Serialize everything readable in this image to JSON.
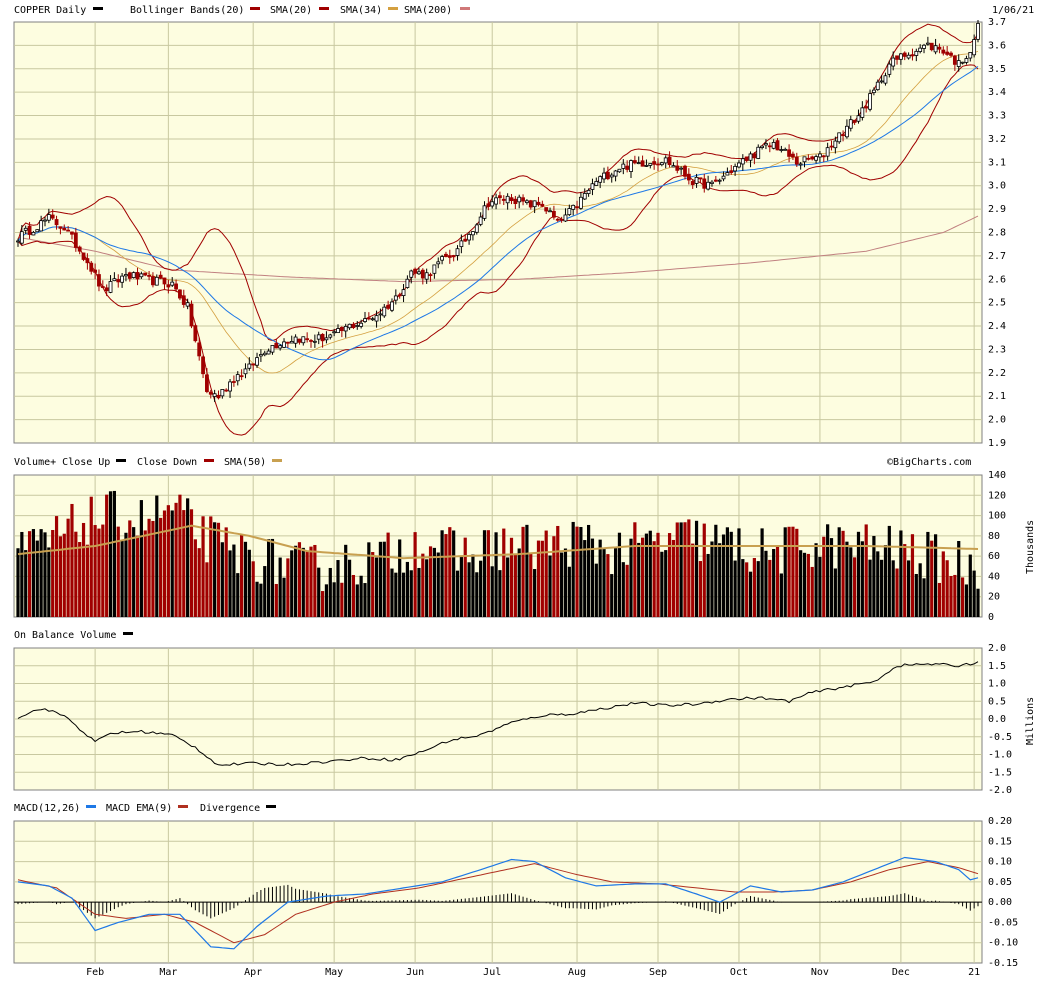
{
  "colors": {
    "background": "#fdfde0",
    "grid": "#c8c8a0",
    "up": "#000000",
    "down": "#a00000",
    "boll": "#a00000",
    "sma20": "#a00000",
    "sma34": "#d4a040",
    "sma200_line": "#1e78e6",
    "sma200_legend": "#d07878",
    "long_ma": "#c08080",
    "vol_sma": "#c8a050",
    "macd": "#1e78e6",
    "macd_ema": "#b03020",
    "divergence": "#000000"
  },
  "header": {
    "symbol_label": "COPPER Daily",
    "date": "1/06/21",
    "legend": [
      {
        "text": "Bollinger Bands(20)",
        "swatch": "#a00000"
      },
      {
        "text": "SMA(20)",
        "swatch": "#a00000"
      },
      {
        "text": "SMA(34)",
        "swatch": "#d4a040"
      },
      {
        "text": "SMA(200)",
        "swatch": "#d07878"
      }
    ]
  },
  "watermark": "©BigCharts.com",
  "months": [
    "Feb",
    "Mar",
    "Apr",
    "May",
    "Jun",
    "Jul",
    "Aug",
    "Sep",
    "Oct",
    "Nov",
    "Dec",
    "21"
  ],
  "chart_data": [
    {
      "type": "candlestick",
      "title": "COPPER Daily",
      "ylim": [
        1.9,
        3.7
      ],
      "ticks": [
        "3.7",
        "3.6",
        "3.5",
        "3.4",
        "3.3",
        "3.2",
        "3.1",
        "3.0",
        "2.9",
        "2.8",
        "2.7",
        "2.6",
        "2.5",
        "2.4",
        "2.3",
        "2.2",
        "2.1",
        "2.0",
        "1.9"
      ],
      "close_anchors": [
        [
          0,
          2.78
        ],
        [
          8,
          2.86
        ],
        [
          12,
          2.82
        ],
        [
          18,
          2.68
        ],
        [
          22,
          2.55
        ],
        [
          28,
          2.62
        ],
        [
          33,
          2.6
        ],
        [
          40,
          2.58
        ],
        [
          44,
          2.48
        ],
        [
          49,
          2.12
        ],
        [
          52,
          2.1
        ],
        [
          56,
          2.18
        ],
        [
          60,
          2.22
        ],
        [
          64,
          2.3
        ],
        [
          68,
          2.33
        ],
        [
          72,
          2.35
        ],
        [
          76,
          2.34
        ],
        [
          82,
          2.36
        ],
        [
          86,
          2.4
        ],
        [
          90,
          2.42
        ],
        [
          94,
          2.46
        ],
        [
          98,
          2.52
        ],
        [
          102,
          2.63
        ],
        [
          106,
          2.62
        ],
        [
          110,
          2.68
        ],
        [
          114,
          2.72
        ],
        [
          118,
          2.82
        ],
        [
          122,
          2.93
        ],
        [
          128,
          2.95
        ],
        [
          132,
          2.92
        ],
        [
          136,
          2.92
        ],
        [
          140,
          2.84
        ],
        [
          144,
          2.9
        ],
        [
          150,
          3.02
        ],
        [
          156,
          3.08
        ],
        [
          162,
          3.1
        ],
        [
          168,
          3.11
        ],
        [
          172,
          3.06
        ],
        [
          175,
          3.02
        ],
        [
          180,
          3.0
        ],
        [
          186,
          3.08
        ],
        [
          192,
          3.15
        ],
        [
          196,
          3.18
        ],
        [
          202,
          3.1
        ],
        [
          208,
          3.12
        ],
        [
          212,
          3.2
        ],
        [
          218,
          3.3
        ],
        [
          222,
          3.4
        ],
        [
          226,
          3.52
        ],
        [
          230,
          3.56
        ],
        [
          236,
          3.6
        ],
        [
          240,
          3.58
        ],
        [
          244,
          3.52
        ],
        [
          247,
          3.58
        ],
        [
          249,
          3.68
        ]
      ],
      "sma200_points": [
        [
          0,
          2.78
        ],
        [
          20,
          2.72
        ],
        [
          40,
          2.64
        ],
        [
          70,
          2.61
        ],
        [
          100,
          2.59
        ],
        [
          130,
          2.6
        ],
        [
          160,
          2.63
        ],
        [
          190,
          2.67
        ],
        [
          220,
          2.72
        ],
        [
          240,
          2.8
        ],
        [
          249,
          2.87
        ]
      ]
    },
    {
      "type": "bar",
      "title": "Volume+",
      "legend": [
        {
          "text": "Volume+ Close Up",
          "swatch": "#000000"
        },
        {
          "text": "Close Down",
          "swatch": "#a00000"
        },
        {
          "text": "SMA(50)",
          "swatch": "#c8a050"
        }
      ],
      "ylabel": "Thousands",
      "ylim": [
        0,
        140
      ],
      "ticks": [
        "140",
        "120",
        "100",
        "80",
        "60",
        "40",
        "20",
        "0"
      ],
      "volume_anchors": [
        [
          0,
          60
        ],
        [
          10,
          78
        ],
        [
          18,
          95
        ],
        [
          25,
          100
        ],
        [
          32,
          95
        ],
        [
          40,
          105
        ],
        [
          48,
          80
        ],
        [
          55,
          65
        ],
        [
          65,
          55
        ],
        [
          75,
          48
        ],
        [
          85,
          52
        ],
        [
          95,
          58
        ],
        [
          105,
          75
        ],
        [
          115,
          60
        ],
        [
          125,
          70
        ],
        [
          135,
          68
        ],
        [
          145,
          75
        ],
        [
          155,
          65
        ],
        [
          165,
          72
        ],
        [
          175,
          78
        ],
        [
          185,
          70
        ],
        [
          195,
          62
        ],
        [
          205,
          72
        ],
        [
          215,
          70
        ],
        [
          225,
          68
        ],
        [
          235,
          60
        ],
        [
          249,
          50
        ]
      ],
      "sma50_points": [
        [
          0,
          62
        ],
        [
          20,
          70
        ],
        [
          45,
          90
        ],
        [
          60,
          80
        ],
        [
          75,
          65
        ],
        [
          100,
          58
        ],
        [
          130,
          62
        ],
        [
          160,
          70
        ],
        [
          190,
          70
        ],
        [
          220,
          70
        ],
        [
          240,
          68
        ],
        [
          249,
          67
        ]
      ]
    },
    {
      "type": "line",
      "title": "On Balance Volume",
      "legend": [
        {
          "text": "On Balance Volume",
          "swatch": "#000000"
        }
      ],
      "ylabel": "Millions",
      "ylim": [
        -2.0,
        2.0
      ],
      "ticks": [
        "2.0",
        "1.5",
        "1.0",
        "0.5",
        "0.0",
        "-0.5",
        "-1.0",
        "-1.5",
        "-2.0"
      ],
      "obv_anchors": [
        [
          0,
          0.05
        ],
        [
          6,
          0.3
        ],
        [
          12,
          0.1
        ],
        [
          20,
          -0.65
        ],
        [
          24,
          -0.4
        ],
        [
          32,
          -0.35
        ],
        [
          40,
          -0.45
        ],
        [
          46,
          -0.8
        ],
        [
          52,
          -1.3
        ],
        [
          60,
          -1.25
        ],
        [
          70,
          -1.28
        ],
        [
          80,
          -1.2
        ],
        [
          90,
          -1.1
        ],
        [
          98,
          -1.15
        ],
        [
          104,
          -0.95
        ],
        [
          112,
          -0.6
        ],
        [
          120,
          -0.45
        ],
        [
          128,
          -0.1
        ],
        [
          136,
          0.1
        ],
        [
          144,
          0.15
        ],
        [
          152,
          0.3
        ],
        [
          160,
          0.45
        ],
        [
          168,
          0.38
        ],
        [
          176,
          0.42
        ],
        [
          184,
          0.55
        ],
        [
          192,
          0.6
        ],
        [
          200,
          0.5
        ],
        [
          206,
          0.75
        ],
        [
          214,
          0.9
        ],
        [
          222,
          1.05
        ],
        [
          228,
          1.5
        ],
        [
          236,
          1.55
        ],
        [
          244,
          1.5
        ],
        [
          249,
          1.6
        ]
      ]
    },
    {
      "type": "line",
      "title": "MACD(12,26)",
      "legend": [
        {
          "text": "MACD(12,26)",
          "swatch": "#1e78e6"
        },
        {
          "text": "MACD EMA(9)",
          "swatch": "#b03020"
        },
        {
          "text": "Divergence",
          "swatch": "#000000"
        }
      ],
      "ylim": [
        -0.15,
        0.2
      ],
      "ticks": [
        "0.20",
        "0.15",
        "0.10",
        "0.05",
        "0.00",
        "-0.05",
        "-0.10",
        "-0.15"
      ],
      "macd_anchors": [
        [
          0,
          0.05
        ],
        [
          8,
          0.04
        ],
        [
          14,
          0.01
        ],
        [
          20,
          -0.07
        ],
        [
          26,
          -0.05
        ],
        [
          34,
          -0.03
        ],
        [
          42,
          -0.03
        ],
        [
          50,
          -0.11
        ],
        [
          56,
          -0.115
        ],
        [
          62,
          -0.06
        ],
        [
          70,
          0.0
        ],
        [
          80,
          0.015
        ],
        [
          90,
          0.02
        ],
        [
          100,
          0.035
        ],
        [
          110,
          0.05
        ],
        [
          120,
          0.08
        ],
        [
          128,
          0.105
        ],
        [
          134,
          0.1
        ],
        [
          142,
          0.06
        ],
        [
          150,
          0.04
        ],
        [
          160,
          0.045
        ],
        [
          168,
          0.045
        ],
        [
          176,
          0.02
        ],
        [
          182,
          0.0
        ],
        [
          190,
          0.04
        ],
        [
          198,
          0.025
        ],
        [
          206,
          0.03
        ],
        [
          214,
          0.05
        ],
        [
          222,
          0.08
        ],
        [
          230,
          0.11
        ],
        [
          238,
          0.1
        ],
        [
          244,
          0.08
        ],
        [
          247,
          0.055
        ],
        [
          249,
          0.06
        ]
      ],
      "ema_anchors": [
        [
          0,
          0.055
        ],
        [
          10,
          0.035
        ],
        [
          20,
          -0.03
        ],
        [
          28,
          -0.04
        ],
        [
          38,
          -0.03
        ],
        [
          46,
          -0.05
        ],
        [
          56,
          -0.1
        ],
        [
          64,
          -0.08
        ],
        [
          72,
          -0.03
        ],
        [
          82,
          0.0
        ],
        [
          92,
          0.02
        ],
        [
          104,
          0.035
        ],
        [
          114,
          0.055
        ],
        [
          124,
          0.075
        ],
        [
          134,
          0.095
        ],
        [
          144,
          0.07
        ],
        [
          154,
          0.05
        ],
        [
          166,
          0.045
        ],
        [
          176,
          0.035
        ],
        [
          186,
          0.025
        ],
        [
          196,
          0.025
        ],
        [
          206,
          0.03
        ],
        [
          216,
          0.05
        ],
        [
          226,
          0.08
        ],
        [
          236,
          0.1
        ],
        [
          244,
          0.085
        ],
        [
          249,
          0.07
        ]
      ]
    }
  ]
}
